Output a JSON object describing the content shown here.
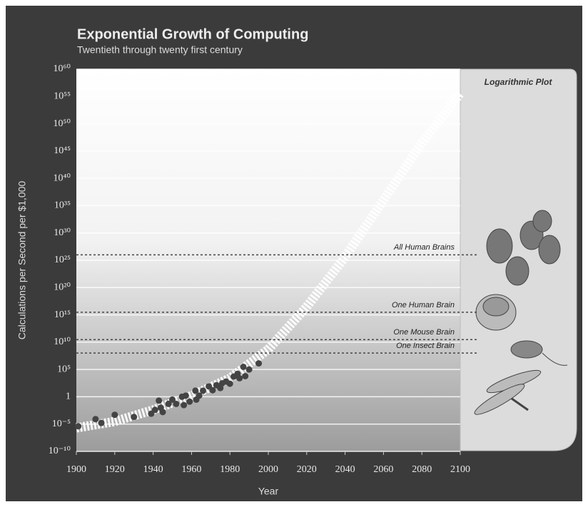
{
  "chart_data": {
    "type": "scatter",
    "title": "Exponential Growth of Computing",
    "subtitle": "Twentieth through twenty first century",
    "xlabel": "Year",
    "ylabel": "Calculations per Second per $1,000",
    "panel_label": "Logarithmic Plot",
    "yscale": "log",
    "grid": true,
    "color": "#444444",
    "xlim": [
      1900,
      2100
    ],
    "ylim": [
      1e-10,
      1e+60
    ],
    "xticks": [
      1900,
      1920,
      1940,
      1960,
      1980,
      2000,
      2020,
      2040,
      2060,
      2080,
      2100
    ],
    "yticks": [
      {
        "value": 1e-10,
        "label": "10⁻¹⁰"
      },
      {
        "value": 1e-05,
        "label": "10⁻⁵"
      },
      1,
      {
        "value": 100000.0,
        "label": "10⁵"
      },
      {
        "value": 10000000000.0,
        "label": "10¹⁰"
      },
      {
        "value": 1000000000000000.0,
        "label": "10¹⁵"
      },
      {
        "value": 1e+20,
        "label": "10²⁰"
      },
      {
        "value": 1e+25,
        "label": "10²⁵"
      },
      {
        "value": 1e+30,
        "label": "10³⁰"
      },
      {
        "value": 1e+35,
        "label": "10³⁵"
      },
      {
        "value": 1e+40,
        "label": "10⁴⁰"
      },
      {
        "value": 1e+45,
        "label": "10⁴⁵"
      },
      {
        "value": 1e+50,
        "label": "10⁵⁰"
      },
      {
        "value": 1e+55,
        "label": "10⁵⁵"
      },
      {
        "value": 1e+60,
        "label": "10⁶⁰"
      }
    ],
    "x": [
      1901,
      1910,
      1913,
      1920,
      1930,
      1939,
      1941,
      1943,
      1944,
      1945,
      1948,
      1950,
      1952,
      1955,
      1956,
      1957,
      1959,
      1962,
      1962.5,
      1964,
      1966,
      1969,
      1971,
      1973,
      1975,
      1976,
      1978,
      1980,
      1982,
      1984,
      1985,
      1987,
      1988,
      1990,
      1995
    ],
    "values": [
      4e-06,
      8e-05,
      1.6e-05,
      0.0005,
      0.0002,
      0.0008,
      0.004,
      0.2,
      0.01,
      0.0016,
      0.05,
      0.3,
      0.05,
      1,
      0.03,
      1.6,
      0.13,
      13,
      0.3,
      1.6,
      13,
      80,
      16,
      130,
      40,
      300,
      600,
      250,
      5000,
      16000,
      2500,
      300000,
      6000,
      100000,
      1300000.0
    ],
    "trend": {
      "x": [
        1900,
        1920,
        1940,
        1960,
        1980,
        2000,
        2020,
        2040,
        2060,
        2080,
        2100
      ],
      "y": [
        2e-06,
        3e-05,
        0.004,
        1.6,
        2500,
        500000000.0,
        3e+16,
        4e+25,
        1e+36,
        3e+46,
        4e+55
      ]
    },
    "annotations": [
      {
        "text": "All Human Brains",
        "value": 1e+26
      },
      {
        "text": "One Human Brain",
        "value": 3000000000000000.0
      },
      {
        "text": "One Mouse Brain",
        "value": 30000000000.0
      },
      {
        "text": "One Insect Brain",
        "value": 100000000.0
      }
    ]
  }
}
